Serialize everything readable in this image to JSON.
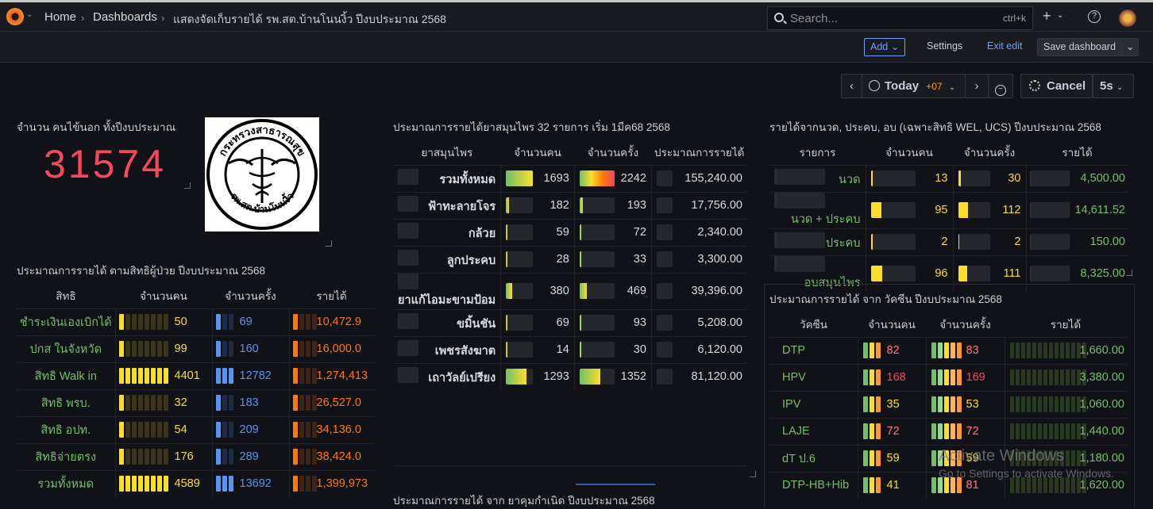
{
  "breadcrumb": {
    "home": "Home",
    "dashboards": "Dashboards",
    "title": "แสดงจัดเก็บรายได้ รพ.สต.บ้านโนนงิ้ว ปีงบประมาณ 2568"
  },
  "search": {
    "placeholder": "Search...",
    "shortcut": "ctrl+k"
  },
  "toolbar": {
    "add": "Add",
    "settings": "Settings",
    "exit_edit": "Exit edit",
    "save": "Save dashboard"
  },
  "time": {
    "range": "Today",
    "tz": "+07",
    "cancel": "Cancel",
    "refresh": "5s"
  },
  "panel_patients": {
    "title": "จำนวน คนไข้นอก ทั้งปีงบประมาณ",
    "value": "31574"
  },
  "panel_seal": {
    "seal_text": "กระทรวงสาธารณสุข รพ.สต.บ้านโนนงิ้ว"
  },
  "panel_rights": {
    "title": "ประมาณการรายได้ ตามสิทธิผู้ป่วย ปีงบประมาณ 2568",
    "headers": [
      "สิทธิ",
      "จำนวนคน",
      "จำนวนครั้ง",
      "รายได้"
    ],
    "rows": [
      {
        "name": "ชำระเงินเองเบิกได้",
        "people": "50",
        "visits": "69",
        "income": "10,472.9"
      },
      {
        "name": "ปกส ในจังหวัด",
        "people": "99",
        "visits": "160",
        "income": "16,000.0"
      },
      {
        "name": "สิทธิ Walk in",
        "people": "4401",
        "visits": "12782",
        "income": "1,274,413"
      },
      {
        "name": "สิทธิ พรบ.",
        "people": "32",
        "visits": "183",
        "income": "26,527.0"
      },
      {
        "name": "สิทธิ อปท.",
        "people": "54",
        "visits": "209",
        "income": "34,136.0"
      },
      {
        "name": "สิทธิจ่ายตรง",
        "people": "176",
        "visits": "289",
        "income": "38,424.0"
      },
      {
        "name": "รวมทั้งหมด",
        "people": "4589",
        "visits": "13692",
        "income": "1,399,973"
      }
    ],
    "people_fill": [
      0.02,
      0.02,
      0.96,
      0.01,
      0.02,
      0.04,
      1.0
    ],
    "visit_fill": [
      0.01,
      0.01,
      0.93,
      0.01,
      0.02,
      0.02,
      1.0
    ]
  },
  "panel_herbs": {
    "title": "ประมาณการรายได้ยาสมุนไพร 32 รายการ เริ่ม 1มีค68 2568",
    "headers": [
      "ยาสมุนไพร",
      "จำนวนคน",
      "จำนวนครั้ง",
      "ประมาณการรายได้"
    ],
    "rows": [
      {
        "name": "รวมทั้งหมด",
        "people": "1693",
        "visits": "2242",
        "income": "155,240.00"
      },
      {
        "name": "ฟ้าทะลายโจร",
        "people": "182",
        "visits": "193",
        "income": "17,756.00"
      },
      {
        "name": "กล้วย",
        "people": "59",
        "visits": "72",
        "income": "2,340.00"
      },
      {
        "name": "ลูกประคบ",
        "people": "28",
        "visits": "33",
        "income": "3,300.00"
      },
      {
        "name": "ยาแก้ไอมะขามป้อม",
        "people": "380",
        "visits": "469",
        "income": "39,396.00"
      },
      {
        "name": "ขมิ้นชัน",
        "people": "69",
        "visits": "93",
        "income": "5,208.00"
      },
      {
        "name": "เพชรสังฆาต",
        "people": "14",
        "visits": "30",
        "income": "6,120.00"
      },
      {
        "name": "เถาวัลย์เปรียง",
        "people": "1293",
        "visits": "1352",
        "income": "81,120.00"
      }
    ],
    "people_fill": [
      1.0,
      0.11,
      0.03,
      0.02,
      0.22,
      0.04,
      0.01,
      0.76
    ],
    "visit_fill": [
      1.0,
      0.09,
      0.03,
      0.01,
      0.21,
      0.04,
      0.01,
      0.6
    ]
  },
  "panel_massage": {
    "title": "รายได้จากนวด, ประคบ, อบ (เฉพาะสิทธิ WEL, UCS) ปีงบประมาณ 2568",
    "headers": [
      "รายการ",
      "จำนวนคน",
      "จำนวนครั้ง",
      "รายได้"
    ],
    "rows": [
      {
        "name": "นวด",
        "people": "13",
        "visits": "30",
        "income": "4,500.00"
      },
      {
        "name": "นวด + ประคบ",
        "people": "95",
        "visits": "112",
        "income": "14,611.52"
      },
      {
        "name": "ประคบ",
        "people": "2",
        "visits": "2",
        "income": "150.00"
      },
      {
        "name": "อบสมุนไพร",
        "people": "96",
        "visits": "111",
        "income": "8,325.00"
      }
    ],
    "people_fill": [
      0.13,
      0.99,
      0.02,
      1.0
    ],
    "visit_fill": [
      0.27,
      1.0,
      0.02,
      0.99
    ]
  },
  "panel_vaccine": {
    "title": "ประมาณการรายได้ จาก วัคซีน ปีงบประมาณ 2568",
    "headers": [
      "วัคซีน",
      "จำนวนคน",
      "จำนวนครั้ง",
      "รายได้"
    ],
    "rows": [
      {
        "name": "DTP",
        "people": "82",
        "visits": "83",
        "income": "1,660.00"
      },
      {
        "name": "HPV",
        "people": "168",
        "visits": "169",
        "income": "3,380.00"
      },
      {
        "name": "IPV",
        "people": "35",
        "visits": "53",
        "income": "1,060.00"
      },
      {
        "name": "LAJE",
        "people": "72",
        "visits": "72",
        "income": "1,440.00"
      },
      {
        "name": "dT ป.6",
        "people": "59",
        "visits": "59",
        "income": "1,180.00"
      },
      {
        "name": "DTP-HB+Hib",
        "people": "41",
        "visits": "81",
        "income": "1,620.00"
      }
    ],
    "people_color": [
      "#ff7383",
      "#f2495c",
      "#fade2a",
      "#ff7383",
      "#fade2a",
      "#fade2a"
    ],
    "visit_color": [
      "#ff7383",
      "#f2495c",
      "#fade2a",
      "#ff7383",
      "#fade2a",
      "#ff7383"
    ]
  },
  "panel_birth": {
    "title": "ประมาณการรายได้ จาก ยาคุมกำเนิด ปีงบประมาณ 2568"
  },
  "watermark": {
    "line1": "Activate Windows",
    "line2": "Go to Settings to activate Windows."
  },
  "colors": {
    "accent": "#6e9fff",
    "red": "#f2495c",
    "green": "#73bf69",
    "yellow": "#fade2a",
    "blue": "#5794f2",
    "orange": "#ff780a"
  }
}
